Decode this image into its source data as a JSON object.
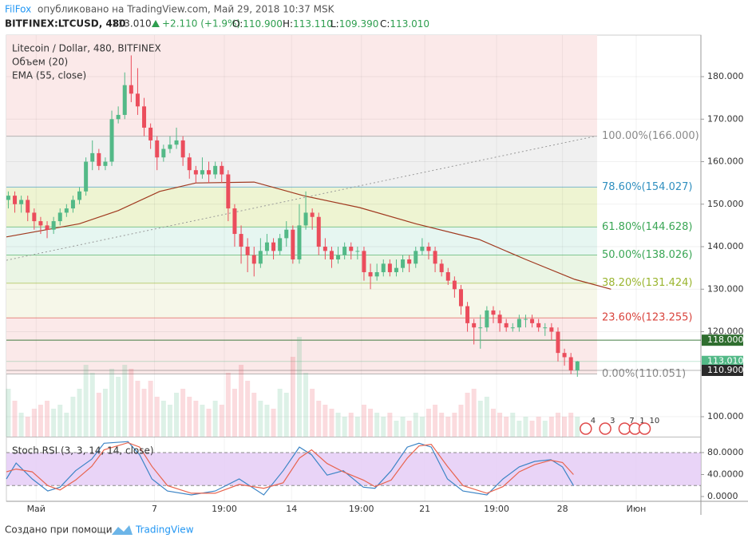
{
  "header": {
    "author": "FilFox",
    "published": "опубликовано на TradingView.com, Май 29, 2018 10:37 MSK",
    "symbol": "BITFINEX:LTCUSD, 480",
    "last": "113.010",
    "change": "+2.110 (+1.9%)",
    "ohlc": [
      [
        "O:",
        "110.900"
      ],
      [
        "H:",
        "113.110"
      ],
      [
        "L:",
        "109.390"
      ],
      [
        "C:",
        "113.010"
      ]
    ]
  },
  "footer": {
    "made_with": "Создано при помощи",
    "brand": "TradingView"
  },
  "chart_data": {
    "type": "candlestick",
    "title": "Litecoin / Dollar, 480, BITFINEX",
    "xlim": [
      -0.3,
      107.1
    ],
    "ylim": [
      95.31,
      189.77
    ],
    "yticks": [
      {
        "value": 100,
        "label": "100.000"
      },
      {
        "value": 120,
        "label": "120.000"
      },
      {
        "value": 130,
        "label": "130.000"
      },
      {
        "value": 140,
        "label": "140.000"
      },
      {
        "value": 150,
        "label": "150.000"
      },
      {
        "value": 160,
        "label": "160.000"
      },
      {
        "value": 170,
        "label": "170.000"
      },
      {
        "value": 180,
        "label": "180.000"
      }
    ],
    "grid": true,
    "time_ticks": [
      {
        "value": 4.3,
        "label": "Май"
      },
      {
        "value": 22.6,
        "label": "7"
      },
      {
        "value": 33.4,
        "label": "19:00"
      },
      {
        "value": 43.8,
        "label": "14"
      },
      {
        "value": 54.6,
        "label": "19:00"
      },
      {
        "value": 64.4,
        "label": "21"
      },
      {
        "value": 75.5,
        "label": "19:00"
      },
      {
        "value": 85.7,
        "label": "28"
      },
      {
        "value": 97.1,
        "label": "Июн"
      }
    ],
    "up_color": "#53b987",
    "down_color": "#eb4d5c",
    "open": [
      151,
      152,
      150,
      151,
      148,
      146,
      145,
      144,
      146,
      148,
      149,
      151,
      153,
      160,
      162,
      159,
      160,
      170,
      171,
      178,
      176,
      173,
      168,
      165,
      161,
      163,
      164,
      165,
      161,
      158,
      157,
      158,
      157,
      159,
      157,
      149,
      143,
      140,
      138,
      136,
      139,
      141,
      139,
      142,
      144,
      137,
      145,
      148,
      147,
      140,
      139,
      137,
      138,
      140,
      139,
      139,
      134,
      133,
      134,
      136,
      134,
      135,
      137,
      136,
      139,
      140,
      139,
      136,
      134,
      132,
      130,
      126,
      122,
      121,
      121,
      125,
      124,
      122,
      121,
      121,
      123,
      123,
      122,
      121,
      121,
      120,
      115,
      114,
      110.9
    ],
    "high": [
      153,
      153,
      152,
      152,
      149,
      147,
      146,
      147,
      149,
      150,
      152,
      154,
      161,
      165,
      163,
      161,
      172,
      173,
      181,
      185,
      182,
      175,
      169,
      166,
      164,
      166,
      168,
      166,
      162,
      159,
      161,
      160,
      160,
      160,
      158,
      150,
      145,
      142,
      140,
      142,
      143,
      142,
      143,
      146,
      145,
      150,
      153,
      149,
      148,
      142,
      140,
      140,
      141,
      141,
      140,
      140,
      136,
      136,
      137,
      137,
      137,
      138,
      138,
      140,
      142,
      141,
      140,
      137,
      135,
      133,
      131,
      127,
      123,
      124,
      126,
      126,
      125,
      123,
      122,
      124,
      124,
      124,
      123,
      122,
      122,
      121,
      116,
      115,
      113.11
    ],
    "low": [
      149,
      148,
      148,
      146,
      144,
      143,
      142,
      143,
      145,
      147,
      148,
      150,
      152,
      158,
      158,
      158,
      159,
      169,
      170,
      174,
      171,
      166,
      163,
      158,
      160,
      162,
      163,
      159,
      156,
      155,
      156,
      155,
      156,
      155,
      146,
      140,
      136,
      134,
      133,
      135,
      138,
      137,
      138,
      140,
      136,
      136,
      144,
      144,
      138,
      137,
      135,
      136,
      137,
      137,
      137,
      132,
      130,
      132,
      133,
      133,
      133,
      134,
      134,
      135,
      138,
      137,
      134,
      133,
      131,
      128,
      124,
      120,
      117,
      116,
      120,
      122,
      120,
      120,
      120,
      120,
      121,
      121,
      120,
      119,
      118,
      113,
      112,
      110,
      109.39
    ],
    "close": [
      152,
      150,
      151,
      148,
      146,
      145,
      144,
      146,
      148,
      149,
      151,
      153,
      160,
      162,
      159,
      160,
      170,
      171,
      178,
      176,
      173,
      168,
      165,
      161,
      163,
      164,
      165,
      161,
      158,
      157,
      158,
      157,
      159,
      157,
      149,
      143,
      140,
      138,
      136,
      139,
      141,
      139,
      142,
      144,
      137,
      145,
      148,
      147,
      140,
      139,
      137,
      138,
      140,
      139,
      139,
      134,
      133,
      134,
      136,
      134,
      135,
      137,
      136,
      139,
      140,
      139,
      136,
      134,
      132,
      130,
      126,
      122,
      121,
      121,
      125,
      124,
      122,
      121,
      121,
      123,
      123,
      122,
      121,
      121,
      120,
      115,
      114,
      110.9,
      113.01
    ],
    "volume": {
      "name": "Объем (20)",
      "ylim": [
        0,
        130
      ],
      "values": [
        60,
        45,
        30,
        25,
        35,
        40,
        45,
        35,
        40,
        30,
        50,
        60,
        90,
        80,
        55,
        60,
        85,
        75,
        90,
        85,
        70,
        60,
        70,
        50,
        45,
        40,
        55,
        60,
        50,
        45,
        40,
        35,
        45,
        40,
        80,
        60,
        90,
        70,
        55,
        45,
        40,
        35,
        60,
        55,
        100,
        125,
        80,
        60,
        45,
        40,
        35,
        30,
        25,
        30,
        25,
        40,
        35,
        30,
        25,
        30,
        20,
        25,
        20,
        30,
        25,
        35,
        40,
        30,
        25,
        30,
        40,
        55,
        60,
        45,
        50,
        35,
        30,
        25,
        30,
        20,
        25,
        20,
        25,
        20,
        25,
        30,
        25,
        30,
        25
      ]
    },
    "ema": {
      "name": "EMA (55, close)",
      "color": "#a0391f",
      "x": [
        -0.3,
        11,
        17,
        23.4,
        29,
        38,
        45.6,
        54.3,
        63,
        72.8,
        80,
        87.6,
        93.2
      ],
      "values": [
        142.3,
        145.4,
        148.5,
        153,
        155,
        155.2,
        152,
        149.2,
        145.4,
        141.7,
        137,
        132.3,
        130
      ]
    },
    "fib": {
      "top_color": "#fbe9e9",
      "band_colors": [
        "#f0f0f0",
        "#eef4d2",
        "#e6f6f1",
        "#eaf5e4",
        "#f6f7e9",
        "#fbe9e9"
      ],
      "levels": [
        {
          "value": 166,
          "label": "100.00%(166.000)",
          "color": "#8a8a8a"
        },
        {
          "value": 154.027,
          "label": "78.60%(154.027)",
          "color": "#2f8fbf"
        },
        {
          "value": 144.628,
          "label": "61.80%(144.628)",
          "color": "#3aa655"
        },
        {
          "value": 138.026,
          "label": "50.00%(138.026)",
          "color": "#3aa655"
        },
        {
          "value": 131.424,
          "label": "38.20%(131.424)",
          "color": "#9ab52f"
        },
        {
          "value": 123.255,
          "label": "23.60%(123.255)",
          "color": "#d9443d"
        },
        {
          "value": 110.051,
          "label": "0.00%(110.051)",
          "color": "#8a8a8a"
        }
      ]
    },
    "trend_line": {
      "x": [
        -0.3,
        90.8
      ],
      "values": [
        136.8,
        166
      ]
    },
    "price_labels": [
      {
        "value": 118,
        "label": "118.000",
        "color": "#2f6e2f"
      },
      {
        "value": 113.01,
        "label": "113.010",
        "color": "#53b987"
      },
      {
        "value": 110.9,
        "label": "110.900",
        "color": "#2a2a2a"
      }
    ],
    "events": {
      "x": [
        89.3,
        92.3,
        95.3,
        96.9,
        98.4
      ],
      "labels": [
        "4",
        "3",
        "7",
        "1",
        "10"
      ]
    },
    "stoch": {
      "name": "Stoch RSI (3, 3, 14, 14, close)",
      "ylim": [
        -8.7,
        107.6
      ],
      "band": [
        20,
        80
      ],
      "band_color": "#e3c9f5",
      "yticks": [
        {
          "value": 0,
          "label": "0.0000"
        },
        {
          "value": 40,
          "label": "40.0000"
        },
        {
          "value": 80,
          "label": "80.0000"
        }
      ],
      "x": [
        -0.3,
        1.2,
        3.7,
        6.1,
        8,
        10.4,
        12.9,
        14.8,
        18.5,
        20.3,
        22.2,
        24.6,
        28.3,
        32,
        35.7,
        39.5,
        42.5,
        45,
        46.9,
        49.3,
        51.8,
        54.9,
        56.7,
        59.2,
        61.7,
        63.5,
        65.4,
        67.9,
        70.3,
        74,
        76.5,
        79,
        81.4,
        83.9,
        85.7,
        87.4
      ],
      "series": [
        {
          "color": "#3d85c6",
          "values": [
            32,
            61,
            32,
            10,
            17,
            47,
            68,
            97,
            100,
            76,
            32,
            10,
            3,
            10,
            32,
            3,
            47,
            90,
            76,
            39,
            47,
            17,
            15,
            47,
            90,
            97,
            90,
            32,
            10,
            3,
            32,
            54,
            64,
            67,
            54,
            20
          ]
        },
        {
          "color": "#e8644f",
          "values": [
            45,
            50,
            45,
            20,
            12,
            30,
            55,
            85,
            98,
            90,
            55,
            20,
            6,
            6,
            22,
            15,
            25,
            70,
            85,
            60,
            45,
            30,
            18,
            30,
            70,
            92,
            95,
            55,
            20,
            6,
            18,
            45,
            58,
            66,
            62,
            40
          ]
        }
      ]
    }
  }
}
